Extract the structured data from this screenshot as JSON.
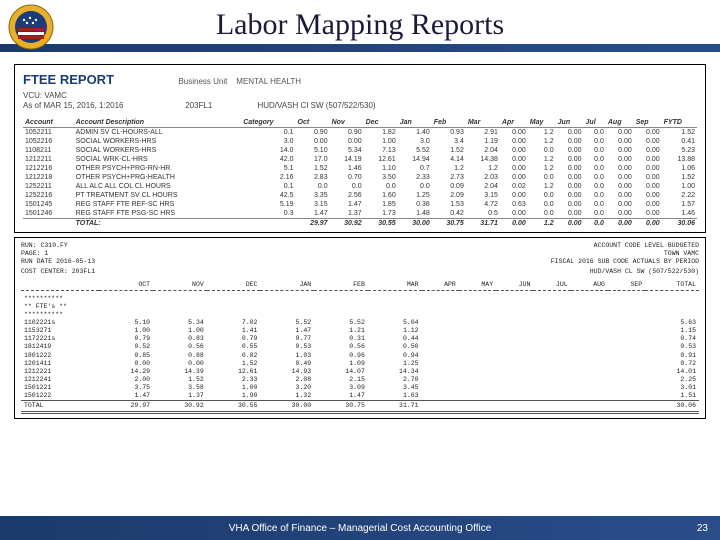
{
  "header": {
    "title": "Labor Mapping Reports",
    "seal_colors": {
      "outer": "#e8b028",
      "stripe1": "#a32020",
      "stripe2": "#ffffff",
      "field": "#1a3c7a"
    }
  },
  "report1": {
    "title": "FTEE REPORT",
    "subtitle_left": "Business Unit",
    "subtitle_right": "MENTAL HEALTH",
    "line2": "VCU: VAMC",
    "line3a": "As of MAR 15, 2016, 1:2016",
    "line3b": "203FL1",
    "line3c": "HUD/VASH CI SW (507/522/530)",
    "columns": [
      "Account",
      "Account Description",
      "Category",
      "Oct",
      "Nov",
      "Dec",
      "Jan",
      "Feb",
      "Mar",
      "Apr",
      "May",
      "Jun",
      "Jul",
      "Aug",
      "Sep",
      "FYTD"
    ],
    "rows": [
      [
        "1052211",
        "ADMIN SV CL-HOURS-ALL",
        "0.1",
        "0.90",
        "0.90",
        "1.82",
        "1.40",
        "0.93",
        "2.91",
        "0.00",
        "1.2",
        "0.00",
        "0.0",
        "0.00",
        "0.00",
        "1.52"
      ],
      [
        "1052216",
        "SOCIAL WORKERS-HRS",
        "3.0",
        "0.00",
        "0.00",
        "1.00",
        "3.0",
        "3.4",
        "1.19",
        "0.00",
        "1.2",
        "0.00",
        "0.0",
        "0.00",
        "0.00",
        "0.41"
      ],
      [
        "1108211",
        "SOCIAL WORKERS-HRS",
        "14.0",
        "5.10",
        "5.34",
        "7.13",
        "5.52",
        "1.52",
        "2.04",
        "0.00",
        "0.0",
        "0.00",
        "0.0",
        "0.00",
        "0.00",
        "5.23"
      ],
      [
        "1212211",
        "SOCIAL WRK-CL-HRS",
        "42.0",
        "17.0",
        "14.19",
        "12.61",
        "14.94",
        "4.14",
        "14.38",
        "0.00",
        "1.2",
        "0.00",
        "0.0",
        "0.00",
        "0.00",
        "13.88"
      ],
      [
        "1212216",
        "OTHER PSYCH+PRG-RN-HR",
        "5.1",
        "1.52",
        "1.46",
        "1.10",
        "0.7",
        "1.2",
        "1.2",
        "0.00",
        "1.2",
        "0.00",
        "0.0",
        "0.00",
        "0.00",
        "1.06"
      ],
      [
        "1212218",
        "OTHER PSYCH+PRG-HEALTH",
        "2.16",
        "2.83",
        "0.70",
        "3.50",
        "2.33",
        "2.73",
        "2.03",
        "0.00",
        "0.0",
        "0.00",
        "0.0",
        "0.00",
        "0.00",
        "1.52"
      ],
      [
        "1252211",
        "ALL ALC ALL COL CL HOURS",
        "0.1",
        "0.0",
        "0.0",
        "0.0",
        "0.0",
        "0.09",
        "2.04",
        "0.02",
        "1.2",
        "0.00",
        "0.0",
        "0.00",
        "0.00",
        "1.00"
      ],
      [
        "1252216",
        "PT TREATMENT SV CL HOURS",
        "42.5",
        "3.35",
        "2.56",
        "1.60",
        "1.25",
        "2.09",
        "3.15",
        "0.00",
        "0.0",
        "0.00",
        "0.0",
        "0.00",
        "0.00",
        "2.22"
      ],
      [
        "1501245",
        "REG STAFF FTE REF-SC HRS",
        "5.19",
        "3.15",
        "1.47",
        "1.85",
        "0.38",
        "1.53",
        "4.72",
        "0.63",
        "0.0",
        "0.00",
        "0.0",
        "0.00",
        "0.00",
        "1.57"
      ],
      [
        "1501246",
        "REG STAFF FTE PSG-SC HRS",
        "0.3",
        "1.47",
        "1.37",
        "1.73",
        "1.48",
        "0.42",
        "0.5",
        "0.00",
        "0.0",
        "0.00",
        "0.0",
        "0.00",
        "0.00",
        "1.46"
      ]
    ],
    "total": [
      "",
      "TOTAL:",
      "",
      "29.97",
      "30.92",
      "30.55",
      "30.00",
      "30.75",
      "31.71",
      "0.00",
      "1.2",
      "0.00",
      "0.0",
      "0.00",
      "0.00",
      "30.06"
    ]
  },
  "report2": {
    "hdr_left1": "RUN: C310.FY",
    "hdr_left2": "PAGE:  1",
    "hdr_left3": "RUN DATE 2016-05-13",
    "hdr_left4": "COST CENTER: 203FL1",
    "hdr_right1": "ACCOUNT CODE LEVEL BUDGETED",
    "hdr_right2": "TOWN VAMC",
    "hdr_right3": "FISCAL 2016 SUB CODE ACTUALS BY PERIOD",
    "hdr_right4": "HUD/VASH CL SW (507/522/530)",
    "columns": [
      "",
      "OCT",
      "NOV",
      "DEC",
      "JAN",
      "FEB",
      "MAR",
      "APR",
      "MAY",
      "JUN",
      "JUL",
      "AUG",
      "SEP",
      "TOTAL"
    ],
    "section": "** FTE's **",
    "rows": [
      [
        "1102221s",
        "5.10",
        "5.34",
        "7.02",
        "5.52",
        "5.52",
        "5.04",
        "",
        "",
        "",
        "",
        "",
        "",
        "5.63"
      ],
      [
        "1153271",
        "1.00",
        "1.00",
        "1.41",
        "1.47",
        "1.21",
        "1.12",
        "",
        "",
        "",
        "",
        "",
        "",
        "1.15"
      ],
      [
        "1172221s",
        "0.79",
        "0.83",
        "0.79",
        "0.77",
        "0.31",
        "0.44",
        "",
        "",
        "",
        "",
        "",
        "",
        "0.74"
      ],
      [
        "1812419",
        "0.52",
        "0.56",
        "0.55",
        "0.53",
        "0.56",
        "0.50",
        "",
        "",
        "",
        "",
        "",
        "",
        "0.53"
      ],
      [
        "1801222",
        "0.85",
        "0.88",
        "0.82",
        "1.03",
        "0.96",
        "0.94",
        "",
        "",
        "",
        "",
        "",
        "",
        "0.91"
      ],
      [
        "1201411",
        "0.00",
        "0.00",
        "1.52",
        "0.49",
        "1.09",
        "1.25",
        "",
        "",
        "",
        "",
        "",
        "",
        "0.72"
      ],
      [
        "1212221",
        "14.29",
        "14.39",
        "12.61",
        "14.93",
        "14.07",
        "14.34",
        "",
        "",
        "",
        "",
        "",
        "",
        "14.01"
      ],
      [
        "1212241",
        "2.00",
        "1.52",
        "2.33",
        "2.08",
        "2.15",
        "2.70",
        "",
        "",
        "",
        "",
        "",
        "",
        "2.25"
      ],
      [
        "1501221",
        "3.75",
        "3.58",
        "1.00",
        "3.20",
        "3.09",
        "3.45",
        "",
        "",
        "",
        "",
        "",
        "",
        "3.01"
      ],
      [
        "1501222",
        "1.47",
        "1.37",
        "1.90",
        "1.32",
        "1.47",
        "1.63",
        "",
        "",
        "",
        "",
        "",
        "",
        "1.51"
      ]
    ],
    "total": [
      "TOTAL",
      "29.97",
      "30.92",
      "30.55",
      "30.00",
      "30.75",
      "31.71",
      "",
      "",
      "",
      "",
      "",
      "",
      "30.06"
    ]
  },
  "footer": {
    "text": "VHA Office of Finance – Managerial Cost Accounting Office",
    "page": "23"
  }
}
